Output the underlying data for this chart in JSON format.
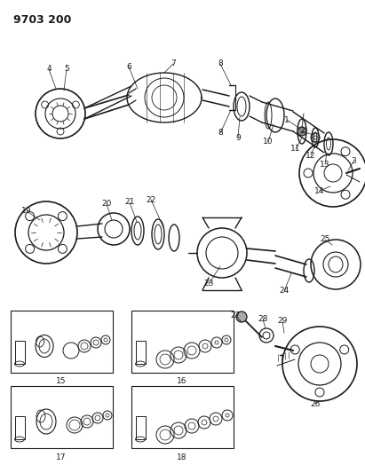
{
  "title": "9703 200",
  "bg_color": "#ffffff",
  "line_color": "#1a1a1a",
  "title_fontsize": 9,
  "label_fontsize": 6.5,
  "fig_width": 4.11,
  "fig_height": 5.33,
  "dpi": 100
}
